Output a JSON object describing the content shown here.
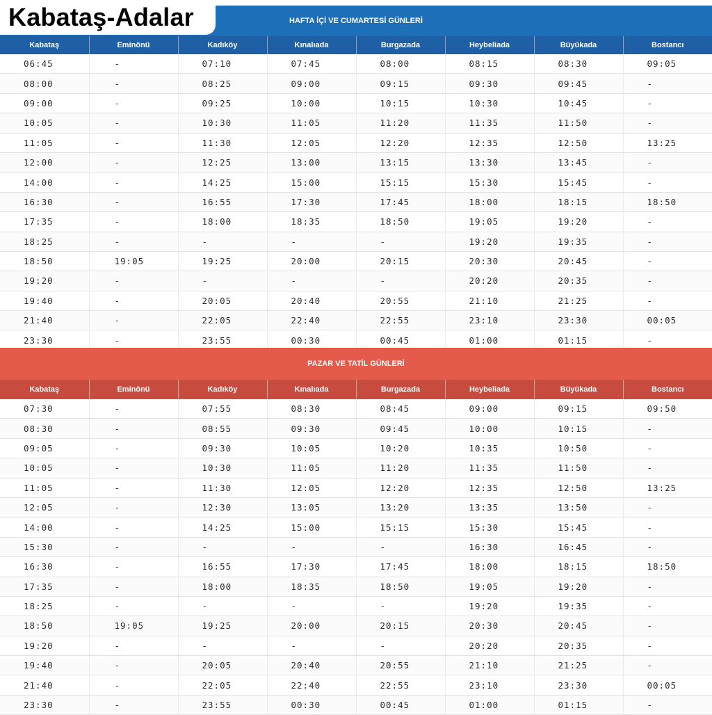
{
  "title": "Kabataş-Adalar",
  "weekday": {
    "banner": "HAFTA İÇİ VE CUMARTESİ GÜNLERİ",
    "headers": [
      "Kabataş",
      "Eminönü",
      "Kadıköy",
      "Kınalıada",
      "Burgazada",
      "Heybeliada",
      "Büyükada",
      "Bostancı"
    ],
    "rows": [
      [
        "06:45",
        "-",
        "07:10",
        "07:45",
        "08:00",
        "08:15",
        "08:30",
        "09:05"
      ],
      [
        "08:00",
        "-",
        "08:25",
        "09:00",
        "09:15",
        "09:30",
        "09:45",
        "-"
      ],
      [
        "09:00",
        "-",
        "09:25",
        "10:00",
        "10:15",
        "10:30",
        "10:45",
        "-"
      ],
      [
        "10:05",
        "-",
        "10:30",
        "11:05",
        "11:20",
        "11:35",
        "11:50",
        "-"
      ],
      [
        "11:05",
        "-",
        "11:30",
        "12:05",
        "12:20",
        "12:35",
        "12:50",
        "13:25"
      ],
      [
        "12:00",
        "-",
        "12:25",
        "13:00",
        "13:15",
        "13:30",
        "13:45",
        "-"
      ],
      [
        "14:00",
        "-",
        "14:25",
        "15:00",
        "15:15",
        "15:30",
        "15:45",
        "-"
      ],
      [
        "16:30",
        "-",
        "16:55",
        "17:30",
        "17:45",
        "18:00",
        "18:15",
        "18:50"
      ],
      [
        "17:35",
        "-",
        "18:00",
        "18:35",
        "18:50",
        "19:05",
        "19:20",
        "-"
      ],
      [
        "18:25",
        "-",
        "-",
        "-",
        "-",
        "19:20",
        "19:35",
        "-"
      ],
      [
        "18:50",
        "19:05",
        "19:25",
        "20:00",
        "20:15",
        "20:30",
        "20:45",
        "-"
      ],
      [
        "19:20",
        "-",
        "-",
        "-",
        "-",
        "20:20",
        "20:35",
        "-"
      ],
      [
        "19:40",
        "-",
        "20:05",
        "20:40",
        "20:55",
        "21:10",
        "21:25",
        "-"
      ],
      [
        "21:40",
        "-",
        "22:05",
        "22:40",
        "22:55",
        "23:10",
        "23:30",
        "00:05"
      ],
      [
        "23:30",
        "-",
        "23:55",
        "00:30",
        "00:45",
        "01:00",
        "01:15",
        "-"
      ]
    ]
  },
  "weekend": {
    "banner": "PAZAR  VE TATİL GÜNLERİ",
    "headers": [
      "Kabataş",
      "Eminönü",
      "Kadıköy",
      "Kınalıada",
      "Burgazada",
      "Heybeliada",
      "Büyükada",
      "Bostancı"
    ],
    "rows": [
      [
        "07:30",
        "-",
        "07:55",
        "08:30",
        "08:45",
        "09:00",
        "09:15",
        "09:50"
      ],
      [
        "08:30",
        "-",
        "08:55",
        "09:30",
        "09:45",
        "10:00",
        "10:15",
        "-"
      ],
      [
        "09:05",
        "-",
        "09:30",
        "10:05",
        "10:20",
        "10:35",
        "10:50",
        "-"
      ],
      [
        "10:05",
        "-",
        "10:30",
        "11:05",
        "11:20",
        "11:35",
        "11:50",
        "-"
      ],
      [
        "11:05",
        "-",
        "11:30",
        "12:05",
        "12:20",
        "12:35",
        "12:50",
        "13:25"
      ],
      [
        "12:05",
        "-",
        "12:30",
        "13:05",
        "13:20",
        "13:35",
        "13:50",
        "-"
      ],
      [
        "14:00",
        "-",
        "14:25",
        "15:00",
        "15:15",
        "15:30",
        "15:45",
        "-"
      ],
      [
        "15:30",
        "-",
        "-",
        "-",
        "-",
        "16:30",
        "16:45",
        "-"
      ],
      [
        "16:30",
        "-",
        "16:55",
        "17:30",
        "17:45",
        "18:00",
        "18:15",
        "18:50"
      ],
      [
        "17:35",
        "-",
        "18:00",
        "18:35",
        "18:50",
        "19:05",
        "19:20",
        "-"
      ],
      [
        "18:25",
        "-",
        "-",
        "-",
        "-",
        "19:20",
        "19:35",
        "-"
      ],
      [
        "18:50",
        "19:05",
        "19:25",
        "20:00",
        "20:15",
        "20:30",
        "20:45",
        "-"
      ],
      [
        "19:20",
        "-",
        "-",
        "-",
        "-",
        "20:20",
        "20:35",
        "-"
      ],
      [
        "19:40",
        "-",
        "20:05",
        "20:40",
        "20:55",
        "21:10",
        "21:25",
        "-"
      ],
      [
        "21:40",
        "-",
        "22:05",
        "22:40",
        "22:55",
        "23:10",
        "23:30",
        "00:05"
      ],
      [
        "23:30",
        "-",
        "23:55",
        "00:30",
        "00:45",
        "01:00",
        "01:15",
        "-"
      ]
    ]
  }
}
